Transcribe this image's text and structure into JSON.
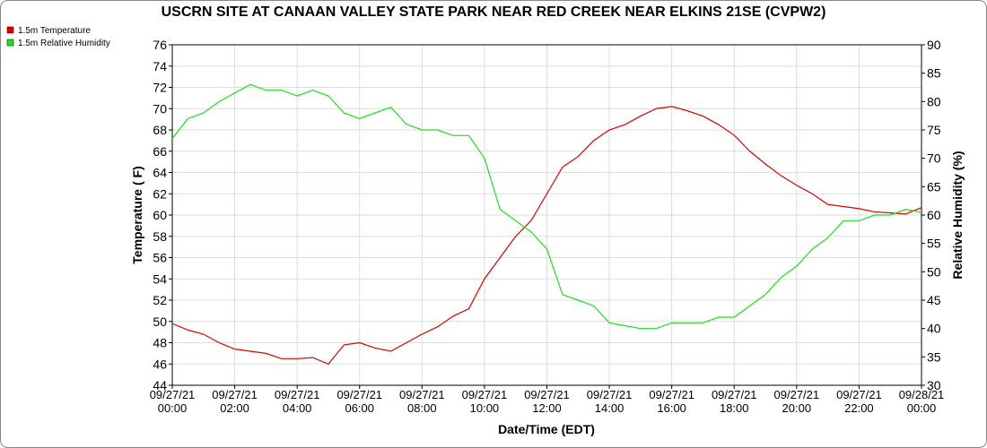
{
  "chart_data": {
    "type": "line",
    "title": "USCRN SITE AT CANAAN VALLEY STATE PARK NEAR RED CREEK NEAR ELKINS 21SE (CVPW2)",
    "xlabel": "Date/Time (EDT)",
    "ylabel": "Temperature ( F)",
    "y2label": "Relative Humidity (%)",
    "x": [
      0,
      0.5,
      1,
      1.5,
      2,
      2.5,
      3,
      3.5,
      4,
      4.5,
      5,
      5.5,
      6,
      6.5,
      7,
      7.5,
      8,
      8.5,
      9,
      9.5,
      10,
      10.5,
      11,
      11.5,
      12,
      12.5,
      13,
      13.5,
      14,
      14.5,
      15,
      15.5,
      16,
      16.5,
      17,
      17.5,
      18,
      18.5,
      19,
      19.5,
      20,
      20.5,
      21,
      21.5,
      22,
      22.5,
      23,
      23.5,
      24
    ],
    "series": [
      {
        "name": "1.5m Temperature",
        "color": "#dd0000",
        "axis": "y",
        "values": [
          49.8,
          49.2,
          48.8,
          48,
          47.4,
          47.2,
          47,
          46.5,
          46.5,
          46.6,
          46,
          47.8,
          48,
          47.5,
          47.2,
          48,
          48.8,
          49.5,
          50.5,
          51.2,
          54,
          56,
          58,
          59.5,
          62,
          64.5,
          65.5,
          67,
          68,
          68.5,
          69.3,
          70,
          70.2,
          69.8,
          69.3,
          68.5,
          67.5,
          66,
          64.8,
          63.7,
          62.8,
          62,
          61,
          60.8,
          60.6,
          60.3,
          60.2,
          60.1,
          60.7
        ]
      },
      {
        "name": "1.5m Relative Humidity",
        "color": "#22dd22",
        "axis": "y2",
        "values": [
          73.5,
          77,
          78,
          80,
          81.5,
          83,
          82,
          82,
          81,
          82,
          81,
          78,
          77,
          78,
          79,
          76,
          75,
          75,
          74,
          74,
          70,
          61,
          59,
          57,
          54,
          46,
          45,
          44,
          41,
          40.5,
          40,
          40,
          41,
          41,
          41,
          42,
          42,
          44,
          46,
          49,
          51,
          54,
          56,
          59,
          59,
          60,
          60,
          61,
          60.5
        ]
      }
    ],
    "xlim": [
      0,
      24
    ],
    "xticks": [
      {
        "value": 0,
        "label": "09/27/21\n00:00"
      },
      {
        "value": 2,
        "label": "09/27/21\n02:00"
      },
      {
        "value": 4,
        "label": "09/27/21\n04:00"
      },
      {
        "value": 6,
        "label": "09/27/21\n06:00"
      },
      {
        "value": 8,
        "label": "09/27/21\n08:00"
      },
      {
        "value": 10,
        "label": "09/27/21\n10:00"
      },
      {
        "value": 12,
        "label": "09/27/21\n12:00"
      },
      {
        "value": 14,
        "label": "09/27/21\n14:00"
      },
      {
        "value": 16,
        "label": "09/27/21\n16:00"
      },
      {
        "value": 18,
        "label": "09/27/21\n18:00"
      },
      {
        "value": 20,
        "label": "09/27/21\n20:00"
      },
      {
        "value": 22,
        "label": "09/27/21\n22:00"
      },
      {
        "value": 24,
        "label": "09/28/21\n00:00"
      }
    ],
    "ylim": [
      44,
      76
    ],
    "yticks": [
      44,
      46,
      48,
      50,
      52,
      54,
      56,
      58,
      60,
      62,
      64,
      66,
      68,
      70,
      72,
      74,
      76
    ],
    "y2lim": [
      30,
      90
    ],
    "y2ticks": [
      30,
      35,
      40,
      45,
      50,
      55,
      60,
      65,
      70,
      75,
      80,
      85,
      90
    ],
    "grid": true,
    "legend": "top-left"
  }
}
